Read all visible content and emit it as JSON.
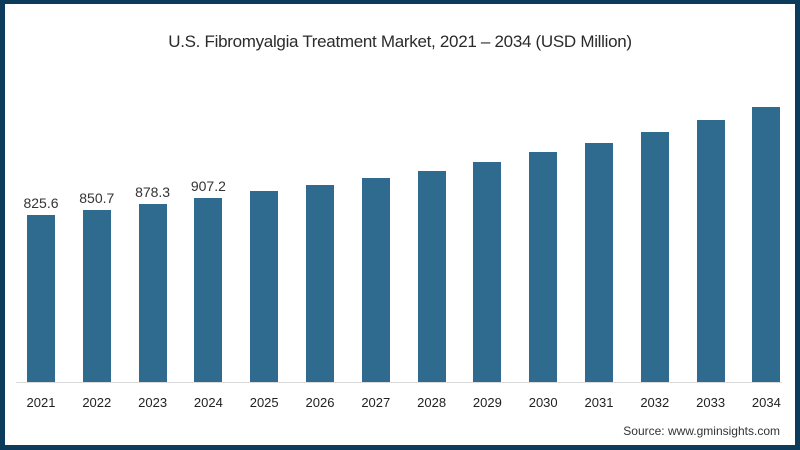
{
  "title": "U.S. Fibromyalgia Treatment Market, 2021 – 2034 (USD Million)",
  "source": "Source: www.gminsights.com",
  "colors": {
    "bar": "#2e6b8e",
    "border": "#0c3b5c",
    "background": "#ffffff"
  },
  "chart_data": {
    "type": "bar",
    "title": "U.S. Fibromyalgia Treatment Market, 2021 – 2034 (USD Million)",
    "xlabel": "",
    "ylabel": "USD Million",
    "categories": [
      "2021",
      "2022",
      "2023",
      "2024",
      "2025",
      "2026",
      "2027",
      "2028",
      "2029",
      "2030",
      "2031",
      "2032",
      "2033",
      "2034"
    ],
    "values": [
      825.6,
      850.7,
      878.3,
      907.2,
      943,
      973,
      1007,
      1042,
      1086,
      1136,
      1181,
      1235,
      1294,
      1358
    ],
    "data_labels": [
      "825.6",
      "850.7",
      "878.3",
      "907.2",
      "",
      "",
      "",
      "",
      "",
      "",
      "",
      "",
      "",
      ""
    ],
    "ylim": [
      0,
      1400
    ],
    "grid": false,
    "legend": null,
    "source": "Source: www.gminsights.com"
  }
}
